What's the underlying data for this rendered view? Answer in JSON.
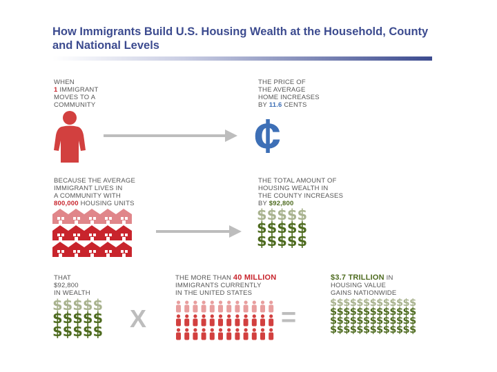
{
  "title": "How Immigrants Build U.S. Housing Wealth at the Household, County and National Levels",
  "section1": {
    "left_text": {
      "pre": "WHEN",
      "num": "1",
      "rest1": " IMMIGRANT",
      "line3": "MOVES TO A",
      "line4": "COMMUNITY"
    },
    "right_text": {
      "line1": "THE PRICE OF",
      "line2": "THE AVERAGE",
      "line3": "HOME INCREASES",
      "pre4": "BY ",
      "num": "11.6",
      "post4": " CENTS"
    },
    "cent_symbol": "¢",
    "icons": {
      "person": "person-icon",
      "cent": "cent-icon"
    }
  },
  "section2": {
    "left_text": {
      "line1": "BECAUSE THE AVERAGE",
      "line2": "IMMIGRANT LIVES IN",
      "line3": "A COMMUNITY WITH",
      "num": "800,000",
      "post4": " HOUSING UNITS"
    },
    "right_text": {
      "line1": "THE TOTAL AMOUNT OF",
      "line2": "HOUSING WEALTH IN",
      "line3": "THE COUNTY INCREASES",
      "pre4": "BY ",
      "num": "$92,800"
    },
    "icons": {
      "house": "house-icon"
    }
  },
  "section3": {
    "left_text": {
      "line1": "THAT",
      "line2": "$92,800",
      "line3": "IN WEALTH"
    },
    "mid_text": {
      "pre1": "THE MORE THAN ",
      "num": "40 million",
      "line2": "IMMIGRANTS CURRENTLY",
      "line3": "IN THE UNITED STATES"
    },
    "right_text": {
      "num": "$3.7 trillion",
      "post1": " IN",
      "line2": "HOUSING VALUE",
      "line3": "GAINS NATIONWIDE"
    },
    "times_symbol": "X",
    "equals_symbol": "=",
    "dollar_symbol": "$"
  },
  "colors": {
    "title": "#3c4b8f",
    "red": "#c8242c",
    "blue": "#3d6fb6",
    "green": "#4e6b1f",
    "gray": "#bdbdbd"
  }
}
